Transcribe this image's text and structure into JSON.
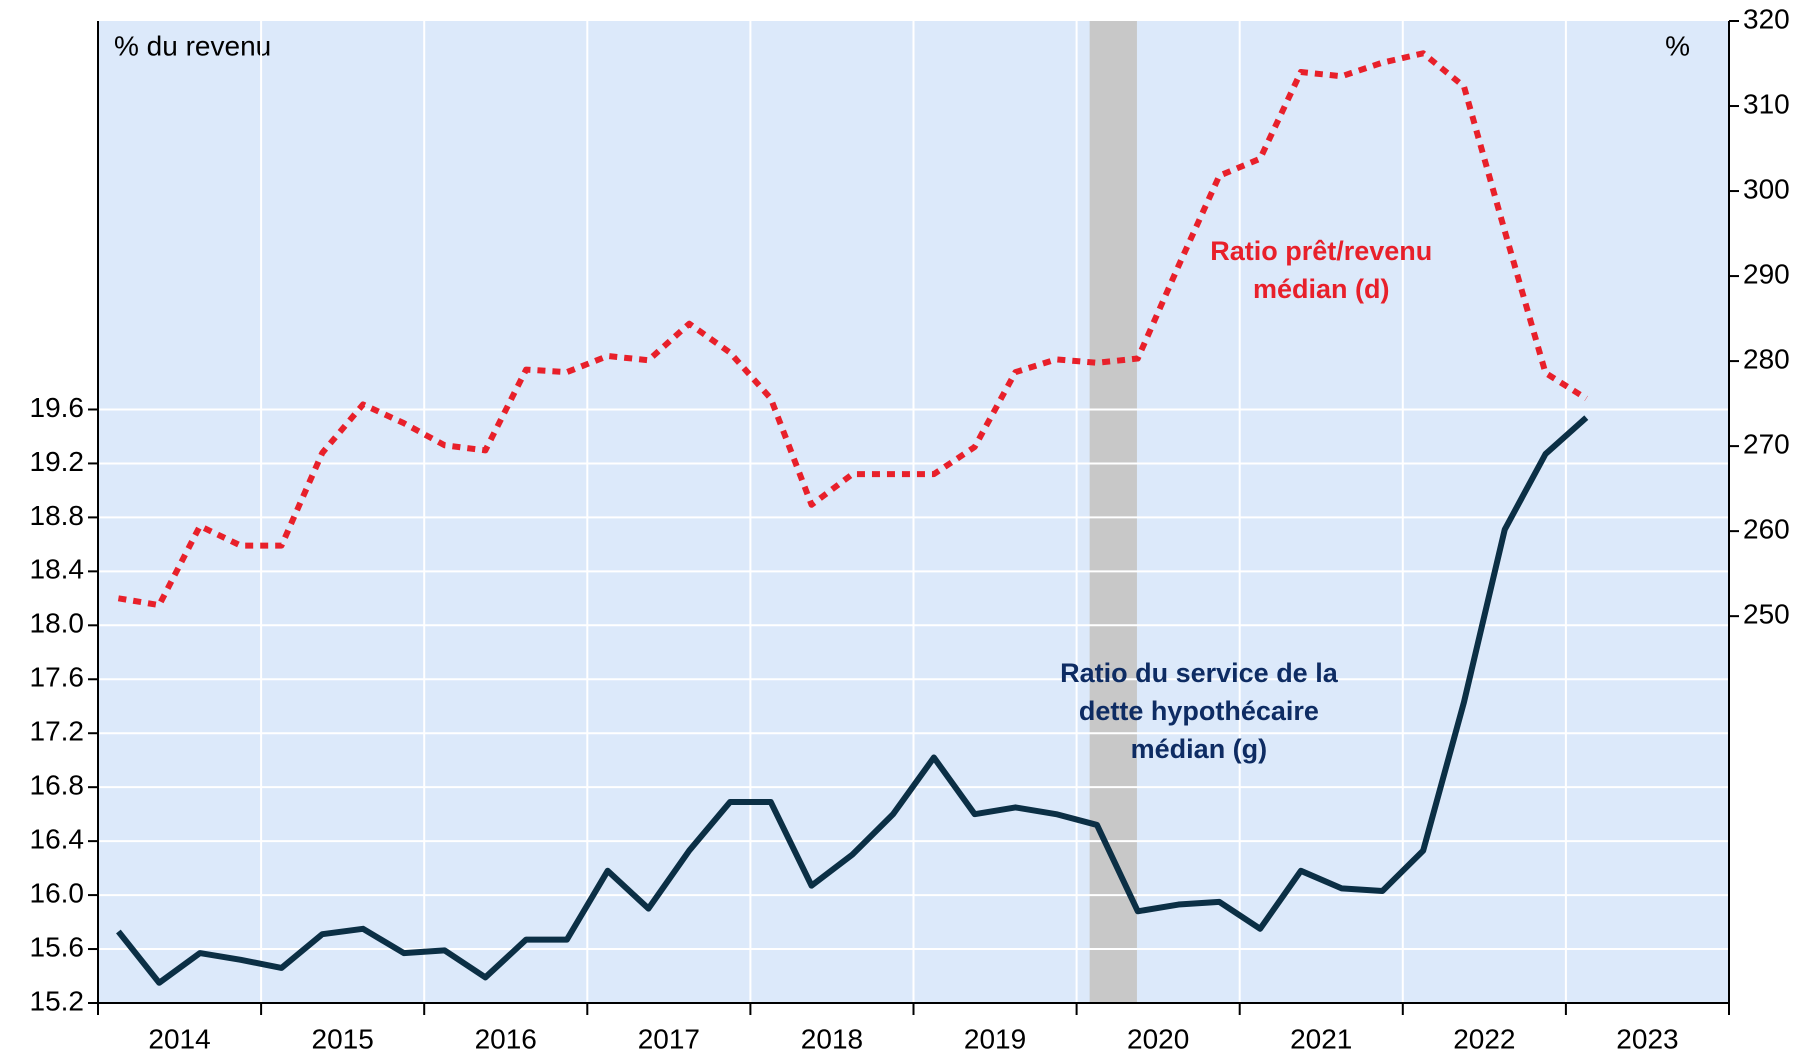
{
  "chart_data": {
    "type": "line",
    "axis_labels": {
      "y": "% du revenu",
      "y2": "%"
    },
    "annotations": [
      {
        "lines": [
          "Ratio prêt/revenu",
          "médian (d)"
        ],
        "color": "#e8202a",
        "x": 2021.5,
        "y2": 290.5
      },
      {
        "lines": [
          "Ratio du service de la",
          "dette hypothécaire",
          "médian (g)"
        ],
        "color": "#0e2c63",
        "x": 2020.75,
        "y": 17.35
      }
    ],
    "x": [
      2014.125,
      2014.375,
      2014.625,
      2014.875,
      2015.125,
      2015.375,
      2015.625,
      2015.875,
      2016.125,
      2016.375,
      2016.625,
      2016.875,
      2017.125,
      2017.375,
      2017.625,
      2017.875,
      2018.125,
      2018.375,
      2018.625,
      2018.875,
      2019.125,
      2019.375,
      2019.625,
      2019.875,
      2020.125,
      2020.375,
      2020.625,
      2020.875,
      2021.125,
      2021.375,
      2021.625,
      2021.875,
      2022.125,
      2022.375,
      2022.625,
      2022.875,
      2023.125
    ],
    "series": [
      {
        "name": "Ratio du service de la dette hypothécaire médian (g)",
        "color": "#0b2f45",
        "axis": "y",
        "dashed": false,
        "values": [
          15.73,
          15.35,
          15.57,
          15.52,
          15.46,
          15.71,
          15.75,
          15.57,
          15.59,
          15.39,
          15.67,
          15.67,
          16.18,
          15.9,
          16.33,
          16.69,
          16.69,
          16.07,
          16.3,
          16.6,
          17.02,
          16.6,
          16.65,
          16.6,
          16.52,
          15.88,
          15.93,
          15.95,
          15.75,
          16.18,
          16.05,
          16.03,
          16.33,
          17.43,
          18.71,
          19.27,
          19.54
        ]
      },
      {
        "name": "Ratio prêt/revenu médian (d)",
        "color": "#e8202a",
        "axis": "y2",
        "dashed": true,
        "values": [
          252.1,
          251.3,
          260.6,
          258.3,
          258.3,
          269.2,
          274.9,
          272.7,
          270.1,
          269.5,
          279.0,
          278.7,
          280.6,
          280.1,
          284.4,
          281.0,
          275.6,
          263.1,
          266.7,
          266.7,
          266.7,
          269.9,
          278.7,
          280.2,
          279.8,
          280.3,
          291.2,
          301.8,
          303.8,
          314.0,
          313.5,
          315.1,
          316.2,
          312.3,
          295.3,
          278.6,
          275.6
        ]
      }
    ],
    "shade_x": [
      2020.08,
      2020.37
    ],
    "xlim": [
      2014,
      2024
    ],
    "xticks": [
      {
        "value": 2014.5,
        "label": "2014"
      },
      {
        "value": 2015.5,
        "label": "2015"
      },
      {
        "value": 2016.5,
        "label": "2016"
      },
      {
        "value": 2017.5,
        "label": "2017"
      },
      {
        "value": 2018.5,
        "label": "2018"
      },
      {
        "value": 2019.5,
        "label": "2019"
      },
      {
        "value": 2020.5,
        "label": "2020"
      },
      {
        "value": 2021.5,
        "label": "2021"
      },
      {
        "value": 2022.5,
        "label": "2022"
      },
      {
        "value": 2023.5,
        "label": "2023"
      }
    ],
    "ylim": [
      15.2,
      22.48
    ],
    "yticks": [
      15.2,
      15.6,
      {
        "value": 16,
        "label": "16.0"
      },
      16.4,
      16.8,
      17.2,
      17.6,
      {
        "value": 18,
        "label": "18.0"
      },
      18.4,
      18.8,
      19.2,
      19.6
    ],
    "y2lim": [
      204.5,
      320
    ],
    "y2ticks": [
      250,
      260,
      270,
      280,
      290,
      300,
      310,
      320
    ],
    "grid": true,
    "background": "#dce9fa",
    "shade_color": "#c8c8c8"
  }
}
